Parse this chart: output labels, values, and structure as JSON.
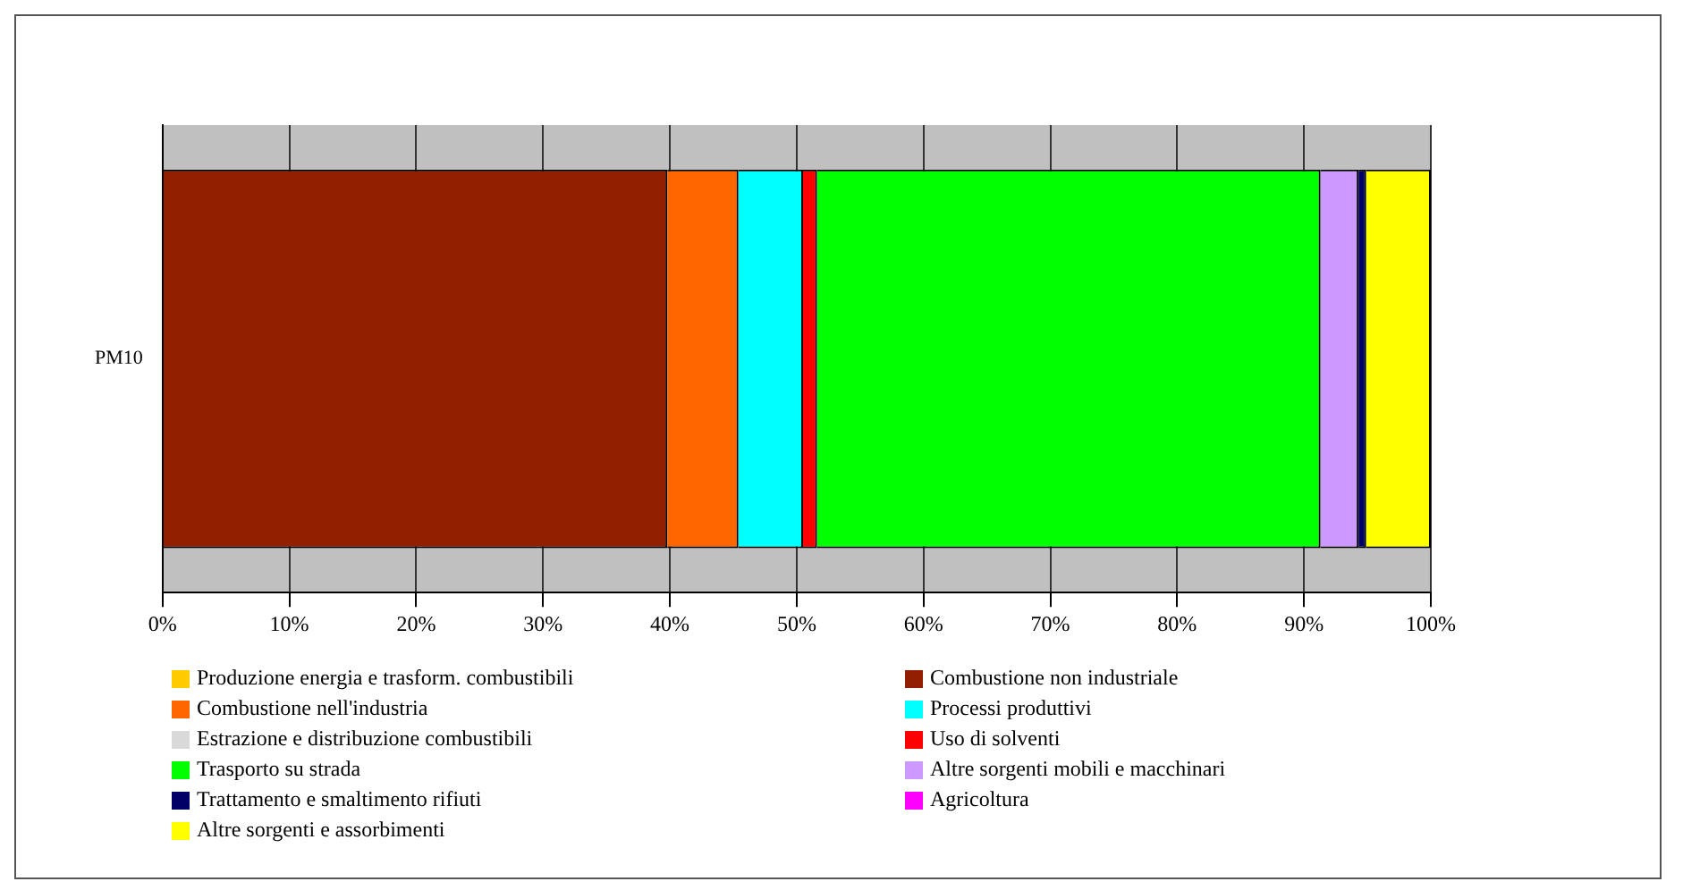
{
  "chart_data": {
    "type": "bar",
    "orientation": "horizontal",
    "stacked": true,
    "categories": [
      "PM10"
    ],
    "xlim": [
      0,
      100
    ],
    "xticks": [
      {
        "value": 0,
        "label": "0%"
      },
      {
        "value": 10,
        "label": "10%"
      },
      {
        "value": 20,
        "label": "20%"
      },
      {
        "value": 30,
        "label": "30%"
      },
      {
        "value": 40,
        "label": "40%"
      },
      {
        "value": 50,
        "label": "50%"
      },
      {
        "value": 60,
        "label": "60%"
      },
      {
        "value": 70,
        "label": "70%"
      },
      {
        "value": 80,
        "label": "80%"
      },
      {
        "value": 90,
        "label": "90%"
      },
      {
        "value": 100,
        "label": "100%"
      }
    ],
    "grid": "x",
    "legend": "bottom",
    "series": [
      {
        "name": "Produzione energia e trasform. combustibili",
        "color": "#ffcc00",
        "values": [
          0
        ]
      },
      {
        "name": "Combustione non industriale",
        "color": "#922000",
        "values": [
          39.8
        ]
      },
      {
        "name": "Combustione nell'industria",
        "color": "#ff6600",
        "values": [
          5.6
        ]
      },
      {
        "name": "Processi produttivi",
        "color": "#00ffff",
        "values": [
          5.1
        ]
      },
      {
        "name": "Estrazione e distribuzione combustibili",
        "color": "#d9d9d9",
        "values": [
          0
        ]
      },
      {
        "name": "Uso di solventi",
        "color": "#ff0000",
        "values": [
          1.1
        ]
      },
      {
        "name": "Trasporto su strada",
        "color": "#00ff00",
        "values": [
          39.7
        ]
      },
      {
        "name": "Altre sorgenti mobili e macchinari",
        "color": "#cc99ff",
        "values": [
          3.0
        ]
      },
      {
        "name": "Trattamento e smaltimento rifiuti",
        "color": "#000066",
        "values": [
          0.6
        ]
      },
      {
        "name": "Agricoltura",
        "color": "#ff00ff",
        "values": [
          0
        ]
      },
      {
        "name": "Altre sorgenti e assorbimenti",
        "color": "#ffff00",
        "values": [
          5.1
        ]
      }
    ]
  }
}
